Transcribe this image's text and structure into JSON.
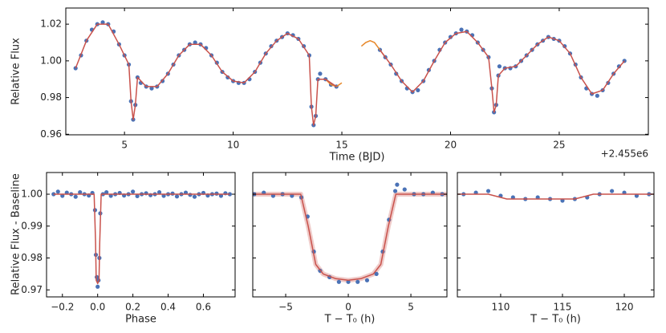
{
  "chart_data": [
    {
      "type": "scatter",
      "xlabel": "Time (BJD)",
      "ylabel": "Relative Flux",
      "offset_label": "+2.455e6",
      "xlim": [
        2.3,
        29.1
      ],
      "ylim": [
        0.9597,
        1.0288
      ],
      "xticks": [
        5,
        10,
        15,
        20,
        25
      ],
      "yticks": [
        0.96,
        0.98,
        {
          "value": 1,
          "label": "1.00"
        },
        1.02
      ],
      "series": [
        {
          "mode": "markers",
          "color": "#4a72b6",
          "x": [
            2.75,
            3.0,
            3.25,
            3.5,
            3.75,
            4.0,
            4.25,
            4.5,
            4.75,
            5.0,
            5.2,
            5.3,
            5.4,
            5.5,
            5.6,
            5.75,
            6.0,
            6.25,
            6.5,
            6.75,
            7.0,
            7.25,
            7.5,
            7.75,
            8.0,
            8.25,
            8.5,
            8.75,
            9.0,
            9.25,
            9.5,
            9.75,
            10.0,
            10.25,
            10.5,
            10.75,
            11.0,
            11.25,
            11.5,
            11.75,
            12.0,
            12.25,
            12.5,
            12.75,
            13.0,
            13.25,
            13.5,
            13.6,
            13.7,
            13.8,
            13.9,
            14.0,
            14.25,
            14.5,
            14.75,
            16.75,
            17.0,
            17.25,
            17.5,
            17.75,
            18.0,
            18.25,
            18.5,
            18.75,
            19.0,
            19.25,
            19.5,
            19.75,
            20.0,
            20.25,
            20.5,
            20.75,
            21.0,
            21.25,
            21.5,
            21.75,
            21.9,
            22.0,
            22.1,
            22.2,
            22.25,
            22.5,
            22.75,
            23.0,
            23.25,
            23.5,
            23.75,
            24.0,
            24.25,
            24.5,
            24.75,
            25.0,
            25.25,
            25.5,
            25.75,
            26.0,
            26.25,
            26.5,
            26.75,
            27.0,
            27.25,
            27.5,
            27.75,
            28.0
          ],
          "values": [
            0.996,
            1.003,
            1.011,
            1.017,
            1.02,
            1.021,
            1.02,
            1.016,
            1.009,
            1.003,
            0.998,
            0.978,
            0.968,
            0.976,
            0.991,
            0.988,
            0.986,
            0.985,
            0.986,
            0.989,
            0.993,
            0.998,
            1.003,
            1.006,
            1.009,
            1.01,
            1.009,
            1.007,
            1.003,
            0.999,
            0.994,
            0.991,
            0.989,
            0.988,
            0.988,
            0.99,
            0.994,
            0.999,
            1.004,
            1.008,
            1.011,
            1.013,
            1.015,
            1.014,
            1.012,
            1.008,
            1.003,
            0.975,
            0.965,
            0.97,
            0.99,
            0.993,
            0.99,
            0.987,
            0.986,
            1.006,
            1.002,
            0.998,
            0.993,
            0.989,
            0.985,
            0.983,
            0.984,
            0.989,
            0.995,
            1.0,
            1.006,
            1.01,
            1.013,
            1.015,
            1.017,
            1.016,
            1.014,
            1.01,
            1.006,
            1.002,
            0.985,
            0.972,
            0.976,
            0.992,
            0.997,
            0.996,
            0.996,
            0.997,
            1.0,
            1.003,
            1.006,
            1.009,
            1.011,
            1.013,
            1.012,
            1.011,
            1.008,
            1.004,
            0.998,
            0.991,
            0.985,
            0.982,
            0.981,
            0.984,
            0.988,
            0.993,
            0.997,
            1.0
          ]
        },
        {
          "mode": "lines",
          "color": "#e8892c",
          "x": [
            14.25,
            14.5,
            14.75,
            15.0,
            15.5,
            15.9,
            16.1,
            16.3,
            16.5,
            16.75,
            17.0
          ],
          "values": [
            0.99,
            0.987,
            0.986,
            0.988,
            null,
            1.008,
            1.01,
            1.011,
            1.01,
            1.006,
            1.002
          ]
        },
        {
          "mode": "lines",
          "color": "#c9524c",
          "x": [
            2.75,
            3.25,
            3.75,
            4.25,
            4.75,
            5.2,
            5.3,
            5.4,
            5.5,
            5.6,
            6.0,
            6.5,
            7.0,
            7.5,
            8.0,
            8.5,
            9.0,
            9.5,
            10.0,
            10.5,
            11.0,
            11.5,
            12.0,
            12.5,
            13.0,
            13.5,
            13.6,
            13.7,
            13.8,
            13.9,
            14.25,
            14.75,
            15.75,
            16.75,
            17.25,
            17.75,
            18.25,
            18.75,
            19.25,
            19.75,
            20.25,
            20.75,
            21.25,
            21.75,
            21.9,
            22.0,
            22.1,
            22.2,
            22.5,
            23.0,
            23.5,
            24.0,
            24.5,
            25.0,
            25.5,
            26.0,
            26.5,
            27.0,
            27.5,
            28.0
          ],
          "values": [
            0.996,
            1.011,
            1.02,
            1.02,
            1.009,
            0.998,
            0.978,
            0.968,
            0.976,
            0.991,
            0.986,
            0.986,
            0.993,
            1.003,
            1.009,
            1.009,
            1.003,
            0.994,
            0.989,
            0.988,
            0.994,
            1.004,
            1.011,
            1.015,
            1.012,
            1.003,
            0.975,
            0.965,
            0.97,
            0.99,
            0.99,
            0.986,
            null,
            1.006,
            0.998,
            0.989,
            0.983,
            0.989,
            1.0,
            1.01,
            1.015,
            1.016,
            1.01,
            1.002,
            0.985,
            0.972,
            0.976,
            0.992,
            0.996,
            0.997,
            1.003,
            1.009,
            1.013,
            1.011,
            1.004,
            0.991,
            0.982,
            0.984,
            0.993,
            1.0
          ]
        }
      ]
    },
    {
      "type": "scatter",
      "xlabel": "Phase",
      "ylabel": "Relative Flux - Baseline",
      "xlim": [
        -0.29,
        0.78
      ],
      "ylim": [
        0.9678,
        1.0068
      ],
      "xticks": [
        {
          "value": -0.2,
          "label": "−0.2"
        },
        {
          "value": 0,
          "label": "0.0"
        },
        0.2,
        0.4,
        0.6
      ],
      "yticks": [
        0.97,
        0.98,
        0.99,
        {
          "value": 1,
          "label": "1.00"
        }
      ],
      "series": [
        {
          "mode": "markers",
          "color": "#4a72b6",
          "x": [
            -0.25,
            -0.225,
            -0.2,
            -0.175,
            -0.15,
            -0.125,
            -0.1,
            -0.075,
            -0.05,
            -0.03,
            -0.015,
            -0.01,
            -0.005,
            0,
            0.005,
            0.01,
            0.015,
            0.03,
            0.05,
            0.075,
            0.1,
            0.125,
            0.15,
            0.175,
            0.2,
            0.225,
            0.25,
            0.275,
            0.3,
            0.325,
            0.35,
            0.375,
            0.4,
            0.425,
            0.45,
            0.475,
            0.5,
            0.525,
            0.55,
            0.575,
            0.6,
            0.625,
            0.65,
            0.675,
            0.7,
            0.725,
            0.75
          ],
          "values": [
            1.0,
            1.0008,
            0.9995,
            1.0005,
            1.0,
            0.9992,
            1.0006,
            1.0,
            0.9996,
            1.0004,
            0.995,
            0.981,
            0.974,
            0.971,
            0.973,
            0.98,
            0.994,
            1.0,
            1.0006,
            0.9995,
            1.0,
            1.0004,
            0.9996,
            1.0,
            1.0008,
            0.9994,
            1.0,
            1.0003,
            0.9997,
            1.0,
            1.0006,
            0.9995,
            1.0,
            1.0002,
            0.9993,
            1.0,
            1.0005,
            0.9998,
            0.9992,
            1.0,
            1.0004,
            0.9996,
            1.0,
            1.0002,
            0.9995,
            1.0003,
            1.0
          ]
        },
        {
          "mode": "lines",
          "color": "#c9524c",
          "x": [
            -0.25,
            -0.02,
            -0.012,
            -0.008,
            0,
            0.008,
            0.012,
            0.02,
            0.75
          ],
          "values": [
            1,
            1,
            0.985,
            0.973,
            0.972,
            0.973,
            0.985,
            1,
            1
          ]
        }
      ]
    },
    {
      "type": "scatter",
      "xlabel": "T − T₀ (h)",
      "xlim": [
        -7.63,
        7.88
      ],
      "ylim": [
        0.9678,
        1.0068
      ],
      "xticks": [
        {
          "value": -5,
          "label": "−5"
        },
        0,
        5
      ],
      "yticks": [
        0.97,
        0.98,
        0.99,
        1
      ],
      "series": [
        {
          "mode": "markers",
          "color": "#4a72b6",
          "x": [
            -7.5,
            -6.75,
            -6,
            -5.25,
            -4.5,
            -3.75,
            -3.25,
            -2.75,
            -2.25,
            -1.5,
            -0.75,
            0,
            0.75,
            1.5,
            2.25,
            2.75,
            3.25,
            3.75,
            3.9,
            4.5,
            5.25,
            6,
            6.75,
            7.5
          ],
          "values": [
            1.0,
            1.0005,
            0.9995,
            1.0,
            0.9995,
            0.999,
            0.993,
            0.982,
            0.976,
            0.974,
            0.9725,
            0.9725,
            0.9725,
            0.973,
            0.975,
            0.982,
            0.992,
            1.001,
            1.003,
            1.0015,
            1.0,
            1.0,
            1.0005,
            1.0
          ]
        },
        {
          "mode": "lines",
          "color": "#c9524c",
          "x": [
            -7.63,
            -3.8,
            -3.2,
            -2.6,
            -2,
            -1,
            0,
            1,
            2,
            2.6,
            3.2,
            3.8,
            7.88
          ],
          "values": [
            1,
            1,
            0.99,
            0.978,
            0.975,
            0.9735,
            0.973,
            0.9735,
            0.975,
            0.978,
            0.99,
            1,
            1
          ]
        }
      ]
    },
    {
      "type": "scatter",
      "xlabel": "T − T₀ (h)",
      "xlim": [
        106.5,
        122.4
      ],
      "ylim": [
        0.9678,
        1.0068
      ],
      "xticks": [
        110,
        115,
        120
      ],
      "yticks": [
        0.97,
        0.98,
        0.99,
        1
      ],
      "series": [
        {
          "mode": "markers",
          "color": "#4a72b6",
          "x": [
            107,
            108,
            109,
            110,
            111,
            112,
            113,
            114,
            115,
            116,
            117,
            118,
            119,
            120,
            121,
            122
          ],
          "values": [
            1.0,
            1.0005,
            1.001,
            0.9995,
            0.999,
            0.9985,
            0.999,
            0.9985,
            0.998,
            0.9985,
            0.999,
            1.0,
            1.001,
            1.0005,
            0.9995,
            1.0
          ]
        },
        {
          "mode": "lines",
          "color": "#c9524c",
          "x": [
            106.5,
            109,
            110.5,
            116,
            117.5,
            122.4
          ],
          "values": [
            1,
            1,
            0.9985,
            0.9985,
            1,
            1
          ]
        }
      ]
    }
  ]
}
